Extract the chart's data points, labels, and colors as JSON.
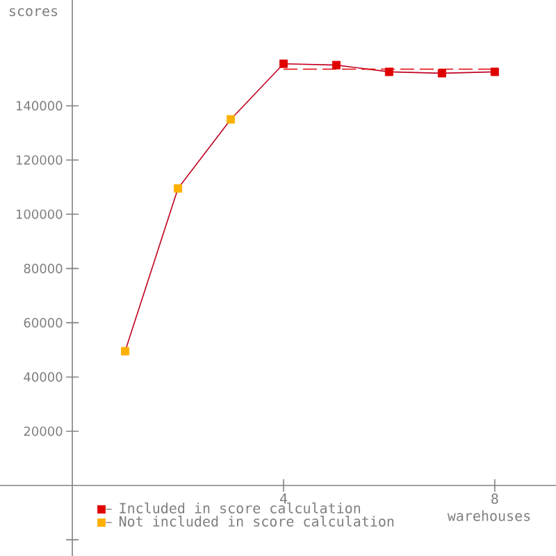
{
  "chart_data": {
    "type": "line",
    "xlabel": "warehouses",
    "ylabel": "scores",
    "xlim": [
      -1.37,
      9.16
    ],
    "ylim": [
      -26000,
      179000
    ],
    "xticks": [
      4,
      8
    ],
    "yticks": [
      {
        "value": -20000,
        "label": null
      },
      20000,
      40000,
      60000,
      80000,
      100000,
      120000,
      140000
    ],
    "legend": "bottom left",
    "x": [
      1,
      2,
      3,
      4,
      5,
      6,
      7,
      8
    ],
    "series": [
      {
        "color": "#c00020",
        "marker": "none",
        "values": [
          49500,
          109500,
          135000,
          155500,
          155000,
          152500,
          152000,
          152500
        ]
      },
      {
        "color": "#e00000",
        "marker": "none",
        "line_style": "dashed",
        "x": [
          4,
          8
        ],
        "values": [
          153500,
          153500
        ]
      },
      {
        "type": "scatter",
        "name": "Included in score calculation",
        "color": "#e00000",
        "marker": "square",
        "x": [
          4,
          5,
          6,
          7,
          8
        ],
        "values": [
          155500,
          155000,
          152500,
          152000,
          152500
        ]
      },
      {
        "type": "scatter",
        "name": "Not included in score calculation",
        "color": "#ffb000",
        "marker": "square",
        "x": [
          1,
          2,
          3
        ],
        "values": [
          49500,
          109500,
          135000
        ]
      }
    ]
  }
}
